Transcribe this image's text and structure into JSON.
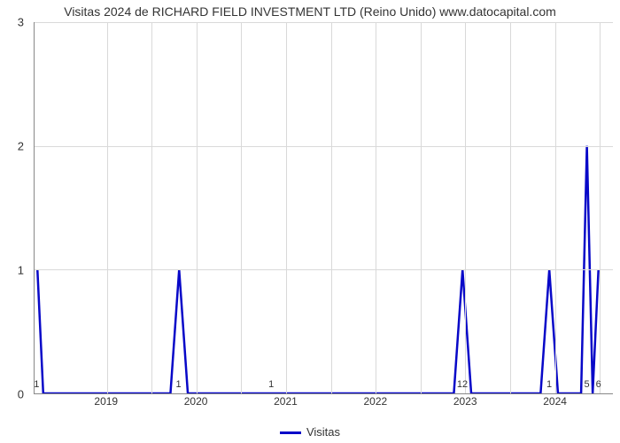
{
  "chart": {
    "type": "line",
    "title": "Visitas 2024 de RICHARD FIELD INVESTMENT LTD (Reino Unido) www.datocapital.com",
    "title_fontsize": 14,
    "title_color": "#333333",
    "background_color": "#ffffff",
    "grid_color": "#d9d9d9",
    "axis_color": "#888888",
    "label_color": "#333333",
    "label_fontsize": 13,
    "line_color": "#0808c8",
    "line_width": 2.5,
    "ylim": [
      0,
      3
    ],
    "yticks": [
      0,
      1,
      2,
      3
    ],
    "x_major_labels": [
      "2019",
      "2020",
      "2021",
      "2022",
      "2023",
      "2024"
    ],
    "x_major_positions_pct": [
      12.5,
      28.0,
      43.5,
      59.0,
      74.5,
      90.0
    ],
    "x_minor_labels": [
      "1",
      "1",
      "1",
      "12",
      "1",
      "5",
      "6"
    ],
    "x_minor_positions_pct": [
      0.5,
      25.0,
      41.0,
      74.0,
      89.0,
      95.5,
      97.5
    ],
    "grid_v_positions_pct": [
      12.5,
      20.25,
      28.0,
      35.75,
      43.5,
      51.25,
      59.0,
      66.75,
      74.5,
      82.25,
      90.0,
      97.75
    ],
    "data_points": [
      {
        "x": 0.5,
        "y": 1
      },
      {
        "x": 1.5,
        "y": 0
      },
      {
        "x": 23.5,
        "y": 0
      },
      {
        "x": 25.0,
        "y": 1
      },
      {
        "x": 26.5,
        "y": 0
      },
      {
        "x": 72.5,
        "y": 0
      },
      {
        "x": 74.0,
        "y": 1
      },
      {
        "x": 75.5,
        "y": 0
      },
      {
        "x": 87.5,
        "y": 0
      },
      {
        "x": 89.0,
        "y": 1
      },
      {
        "x": 90.5,
        "y": 0
      },
      {
        "x": 94.5,
        "y": 0
      },
      {
        "x": 95.5,
        "y": 2
      },
      {
        "x": 96.5,
        "y": 0
      },
      {
        "x": 97.5,
        "y": 1
      }
    ],
    "legend_label": "Visitas"
  }
}
